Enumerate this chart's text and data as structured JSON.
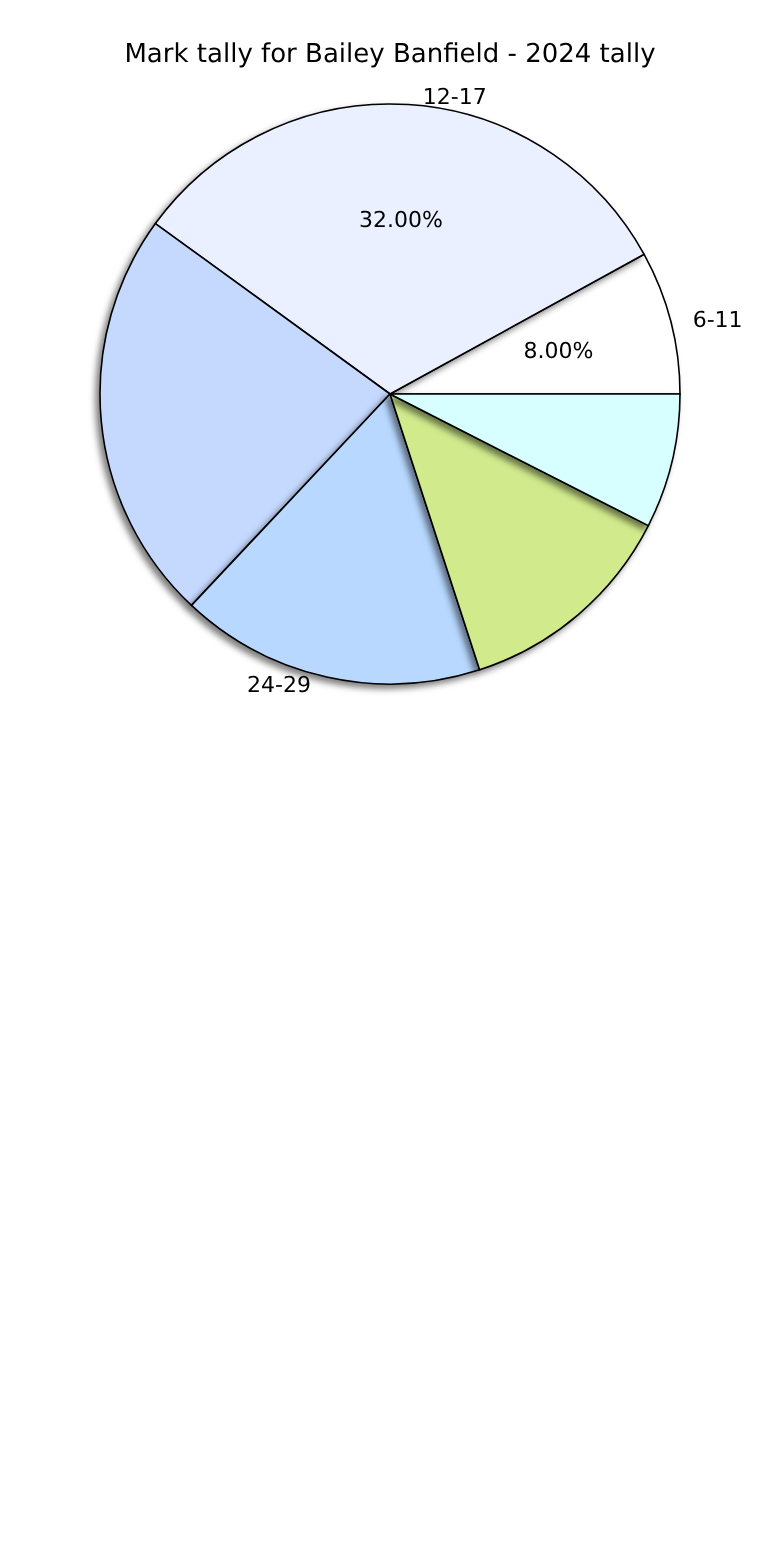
{
  "chart_data": {
    "type": "pie",
    "title": "Mark tally for Bailey Banfield - 2024 tally",
    "categories": [
      "6-11",
      "12-17",
      null,
      "24-29",
      null,
      null
    ],
    "values": [
      8,
      32,
      23,
      17,
      12.5,
      7.5
    ],
    "colors": [
      "#ffffff",
      "#eaf0ff",
      "#c5d9ff",
      "#b8d8ff",
      "#d0ea8c",
      "#d8ffff"
    ],
    "value_labels": [
      "8.00%",
      "32.00%",
      null,
      null,
      null,
      null
    ],
    "legend": false
  }
}
